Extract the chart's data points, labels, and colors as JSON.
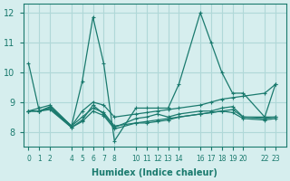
{
  "xlabel": "Humidex (Indice chaleur)",
  "ylabel": "",
  "bg_color": "#d6eeee",
  "line_color": "#1a7a6e",
  "grid_color": "#b0d8d8",
  "xticks": [
    0,
    1,
    2,
    4,
    5,
    6,
    7,
    8,
    10,
    11,
    12,
    13,
    14,
    16,
    17,
    18,
    19,
    20,
    22,
    23
  ],
  "yticks": [
    8,
    9,
    10,
    11,
    12
  ],
  "ylim": [
    7.5,
    12.3
  ],
  "xlim": [
    -0.5,
    24
  ],
  "series": [
    {
      "x": [
        0,
        1,
        2,
        4,
        5,
        6,
        7,
        8,
        10,
        11,
        12,
        13,
        14,
        16,
        17,
        18,
        19,
        20,
        22,
        23
      ],
      "y": [
        10.3,
        8.7,
        8.8,
        8.2,
        9.7,
        11.85,
        10.3,
        7.7,
        8.8,
        8.8,
        8.8,
        8.8,
        9.6,
        12.0,
        11.0,
        10.0,
        9.3,
        9.3,
        8.5,
        9.6
      ]
    },
    {
      "x": [
        0,
        1,
        2,
        4,
        5,
        6,
        7,
        8,
        10,
        11,
        12,
        13,
        14,
        16,
        17,
        18,
        19,
        20,
        22,
        23
      ],
      "y": [
        8.7,
        8.7,
        8.85,
        8.2,
        8.5,
        8.8,
        8.65,
        8.2,
        8.3,
        8.3,
        8.35,
        8.4,
        8.5,
        8.6,
        8.65,
        8.7,
        8.75,
        8.5,
        8.5,
        8.5
      ]
    },
    {
      "x": [
        0,
        1,
        2,
        4,
        5,
        6,
        7,
        8,
        10,
        11,
        12,
        13,
        14,
        16,
        17,
        18,
        19,
        20,
        22,
        23
      ],
      "y": [
        8.7,
        8.8,
        8.9,
        8.2,
        8.7,
        9.0,
        8.9,
        8.5,
        8.6,
        8.65,
        8.7,
        8.75,
        8.8,
        8.9,
        9.0,
        9.1,
        9.15,
        9.2,
        9.3,
        9.6
      ]
    },
    {
      "x": [
        0,
        1,
        2,
        4,
        5,
        6,
        7,
        8,
        10,
        11,
        12,
        13,
        14,
        16,
        17,
        18,
        19,
        20,
        22,
        23
      ],
      "y": [
        8.7,
        8.7,
        8.8,
        8.15,
        8.4,
        8.9,
        8.6,
        8.15,
        8.45,
        8.5,
        8.6,
        8.5,
        8.6,
        8.7,
        8.7,
        8.8,
        8.85,
        8.5,
        8.45,
        8.5
      ]
    },
    {
      "x": [
        0,
        1,
        2,
        4,
        5,
        6,
        7,
        8,
        10,
        11,
        12,
        13,
        14,
        16,
        17,
        18,
        19,
        20,
        22,
        23
      ],
      "y": [
        8.7,
        8.7,
        8.75,
        8.15,
        8.35,
        8.7,
        8.55,
        8.1,
        8.3,
        8.35,
        8.4,
        8.45,
        8.5,
        8.6,
        8.65,
        8.7,
        8.65,
        8.45,
        8.4,
        8.45
      ]
    }
  ]
}
